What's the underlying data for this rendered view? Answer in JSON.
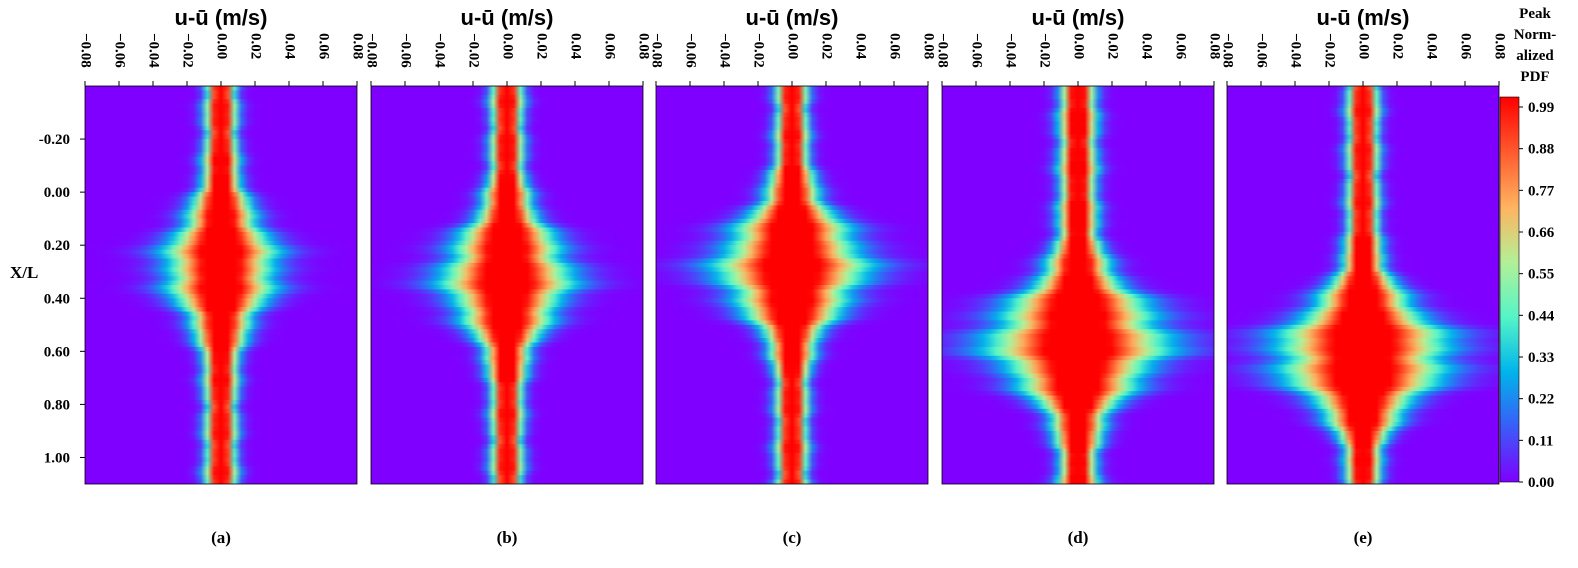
{
  "chart_data": {
    "type": "heatmap",
    "x_title": "u-ū (m/s)",
    "y_title": "X/L",
    "x_ticks": [
      "-0.08",
      "-0.06",
      "-0.04",
      "-0.02",
      "0.00",
      "0.02",
      "0.04",
      "0.06",
      "0.08"
    ],
    "x_range": [
      -0.08,
      0.08
    ],
    "y_ticks": [
      "-0.20",
      "0.00",
      "0.20",
      "0.40",
      "0.60",
      "0.80",
      "1.00"
    ],
    "y_range": [
      -0.4,
      1.1
    ],
    "y_inverted": true,
    "colorbar": {
      "title_lines": [
        "Peak",
        "Norm-",
        "alized",
        "PDF"
      ],
      "ticks": [
        "0.99",
        "0.88",
        "0.77",
        "0.66",
        "0.55",
        "0.44",
        "0.33",
        "0.22",
        "0.11",
        "0.00"
      ],
      "range": [
        0.0,
        0.99
      ],
      "colormap": [
        "#7f00ff",
        "#3a5cf8",
        "#00b4eb",
        "#55f5c7",
        "#b3f096",
        "#ffb360",
        "#ff5a2d",
        "#ff0000"
      ]
    },
    "panels": [
      {
        "label": "(a)",
        "center_m_s": 0.0,
        "core_halfwidth_m_s": 0.006,
        "peak_spread_X_L": 0.28,
        "peak_spread_halfwidth_m_s": 0.044
      },
      {
        "label": "(b)",
        "center_m_s": 0.0,
        "core_halfwidth_m_s": 0.006,
        "peak_spread_X_L": 0.32,
        "peak_spread_halfwidth_m_s": 0.05
      },
      {
        "label": "(c)",
        "center_m_s": 0.0,
        "core_halfwidth_m_s": 0.006,
        "peak_spread_X_L": 0.28,
        "peak_spread_halfwidth_m_s": 0.058
      },
      {
        "label": "(d)",
        "center_m_s": 0.0,
        "core_halfwidth_m_s": 0.007,
        "peak_spread_X_L": 0.56,
        "peak_spread_halfwidth_m_s": 0.07
      },
      {
        "label": "(e)",
        "center_m_s": 0.0,
        "core_halfwidth_m_s": 0.006,
        "peak_spread_X_L": 0.61,
        "peak_spread_halfwidth_m_s": 0.068
      }
    ]
  }
}
